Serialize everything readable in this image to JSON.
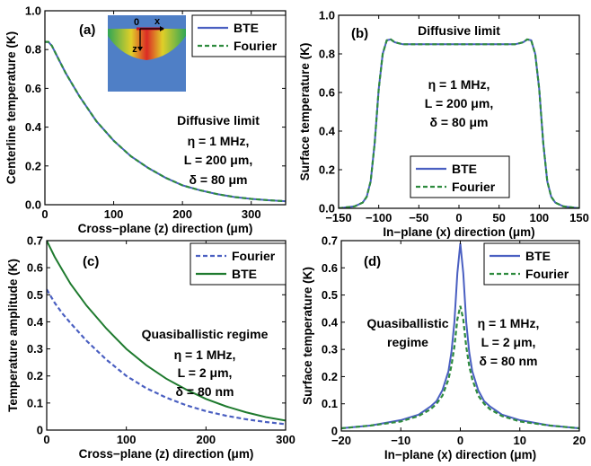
{
  "chart_data": [
    {
      "panel": "(a)",
      "type": "line",
      "xlabel": "Cross−plane (z) direction (μm)",
      "ylabel": "Centerline temperature (K)",
      "xlim": [
        0,
        350
      ],
      "ylim": [
        0,
        1.0
      ],
      "xticks": [
        0,
        100,
        200,
        300
      ],
      "yticks": [
        0,
        0.2,
        0.4,
        0.6,
        0.8,
        1.0
      ],
      "xtick_labels": [
        "0",
        "100",
        "200",
        "300"
      ],
      "ytick_labels": [
        "0.0",
        "0.2",
        "0.4",
        "0.6",
        "0.8",
        "1.0"
      ],
      "annotations": [
        "Diffusive limit",
        "η = 1 MHz,",
        "L = 200 μm,",
        "δ = 80 μm"
      ],
      "legend": "top-right",
      "inset_labels": [
        "0",
        "x",
        "z"
      ],
      "series": [
        {
          "name": "BTE",
          "color": "#4a5fc1",
          "dash": "solid",
          "x": [
            0,
            5,
            10,
            20,
            30,
            50,
            75,
            100,
            125,
            150,
            175,
            200,
            225,
            250,
            275,
            300,
            325,
            350
          ],
          "y": [
            0.84,
            0.84,
            0.82,
            0.75,
            0.68,
            0.56,
            0.43,
            0.33,
            0.25,
            0.19,
            0.14,
            0.1,
            0.075,
            0.055,
            0.04,
            0.03,
            0.023,
            0.018
          ]
        },
        {
          "name": "Fourier",
          "color": "#2e8b3e",
          "dash": "dashed",
          "x": [
            0,
            5,
            10,
            20,
            30,
            50,
            75,
            100,
            125,
            150,
            175,
            200,
            225,
            250,
            275,
            300,
            325,
            350
          ],
          "y": [
            0.84,
            0.84,
            0.82,
            0.75,
            0.68,
            0.56,
            0.43,
            0.33,
            0.25,
            0.19,
            0.14,
            0.1,
            0.075,
            0.055,
            0.04,
            0.03,
            0.023,
            0.018
          ]
        }
      ]
    },
    {
      "panel": "(b)",
      "type": "line",
      "xlabel": "In−plane (x) direction (μm)",
      "ylabel": "Surface temperature (K)",
      "xlim": [
        -150,
        150
      ],
      "ylim": [
        0,
        1.0
      ],
      "xticks": [
        -150,
        -100,
        -50,
        0,
        50,
        100,
        150
      ],
      "yticks": [
        0,
        0.2,
        0.4,
        0.6,
        0.8,
        1.0
      ],
      "xtick_labels": [
        "−150",
        "−100",
        "−50",
        "0",
        "50",
        "100",
        "150"
      ],
      "ytick_labels": [
        "0.0",
        "0.2",
        "0.4",
        "0.6",
        "0.8",
        "1.0"
      ],
      "annotations": [
        "Diffusive limit",
        "η = 1 MHz,",
        "L = 200 μm,",
        "δ = 80 μm"
      ],
      "legend": "bottom-center",
      "series": [
        {
          "name": "BTE",
          "color": "#4a5fc1",
          "dash": "solid",
          "x": [
            -150,
            -140,
            -130,
            -120,
            -115,
            -110,
            -105,
            -100,
            -95,
            -90,
            -85,
            -80,
            -70,
            -50,
            -25,
            0,
            25,
            50,
            70,
            80,
            85,
            90,
            95,
            100,
            105,
            110,
            115,
            120,
            130,
            140,
            150
          ],
          "y": [
            0.0,
            0.005,
            0.01,
            0.03,
            0.06,
            0.14,
            0.34,
            0.62,
            0.8,
            0.87,
            0.875,
            0.86,
            0.85,
            0.85,
            0.85,
            0.85,
            0.85,
            0.85,
            0.85,
            0.86,
            0.875,
            0.87,
            0.8,
            0.62,
            0.34,
            0.14,
            0.06,
            0.03,
            0.01,
            0.005,
            0.0
          ]
        },
        {
          "name": "Fourier",
          "color": "#2e8b3e",
          "dash": "dashed",
          "x": [
            -150,
            -140,
            -130,
            -120,
            -115,
            -110,
            -105,
            -100,
            -95,
            -90,
            -85,
            -80,
            -70,
            -50,
            -25,
            0,
            25,
            50,
            70,
            80,
            85,
            90,
            95,
            100,
            105,
            110,
            115,
            120,
            130,
            140,
            150
          ],
          "y": [
            0.0,
            0.005,
            0.01,
            0.03,
            0.06,
            0.14,
            0.34,
            0.62,
            0.8,
            0.87,
            0.875,
            0.86,
            0.85,
            0.85,
            0.85,
            0.85,
            0.85,
            0.85,
            0.85,
            0.86,
            0.875,
            0.87,
            0.8,
            0.62,
            0.34,
            0.14,
            0.06,
            0.03,
            0.01,
            0.005,
            0.0
          ]
        }
      ]
    },
    {
      "panel": "(c)",
      "type": "line",
      "xlabel": "Cross−plane (z) direction (μm)",
      "ylabel": "Temperature amplitude (K)",
      "xlim": [
        0,
        300
      ],
      "ylim": [
        0,
        0.7
      ],
      "xticks": [
        0,
        100,
        200,
        300
      ],
      "yticks": [
        0,
        0.1,
        0.2,
        0.3,
        0.4,
        0.5,
        0.6,
        0.7
      ],
      "xtick_labels": [
        "0",
        "100",
        "200",
        "300"
      ],
      "ytick_labels": [
        "0",
        "0.1",
        "0.2",
        "0.3",
        "0.4",
        "0.5",
        "0.6",
        "0.7"
      ],
      "annotations": [
        "Quasiballistic regime",
        "η = 1 MHz,",
        "L = 2 μm,",
        "δ = 80 nm"
      ],
      "legend": "top-right",
      "series": [
        {
          "name": "Fourier",
          "color": "#4a5fc1",
          "dash": "dashed",
          "x": [
            0,
            10,
            20,
            30,
            50,
            75,
            100,
            125,
            150,
            175,
            200,
            225,
            250,
            275,
            300
          ],
          "y": [
            0.52,
            0.47,
            0.43,
            0.395,
            0.33,
            0.26,
            0.2,
            0.155,
            0.12,
            0.092,
            0.07,
            0.053,
            0.04,
            0.03,
            0.022
          ]
        },
        {
          "name": "BTE",
          "color": "#1e7a2e",
          "dash": "solid",
          "x": [
            0,
            10,
            20,
            30,
            50,
            75,
            100,
            125,
            150,
            175,
            200,
            225,
            250,
            275,
            300
          ],
          "y": [
            0.7,
            0.64,
            0.59,
            0.54,
            0.46,
            0.375,
            0.3,
            0.24,
            0.19,
            0.15,
            0.115,
            0.088,
            0.066,
            0.048,
            0.035
          ]
        }
      ]
    },
    {
      "panel": "(d)",
      "type": "line",
      "xlabel": "In−plane (x) direction (μm)",
      "ylabel": "Surface temperature (K)",
      "xlim": [
        -20,
        20
      ],
      "ylim": [
        0,
        0.7
      ],
      "xticks": [
        -20,
        -10,
        0,
        10,
        20
      ],
      "yticks": [
        0,
        0.1,
        0.2,
        0.3,
        0.4,
        0.5,
        0.6,
        0.7
      ],
      "xtick_labels": [
        "−20",
        "−10",
        "0",
        "10",
        "20"
      ],
      "ytick_labels": [
        "0",
        "0.1",
        "0.2",
        "0.3",
        "0.4",
        "0.5",
        "0.6",
        "0.7"
      ],
      "annotations": [
        "Quasiballistic",
        "regime",
        "η = 1 MHz,",
        "L = 2 μm,",
        "δ = 80 nm"
      ],
      "legend": "top-right",
      "series": [
        {
          "name": "BTE",
          "color": "#4a5fc1",
          "dash": "solid",
          "x": [
            -20,
            -15,
            -10,
            -7,
            -5,
            -4,
            -3,
            -2,
            -1.5,
            -1,
            -0.5,
            0,
            0.5,
            1,
            1.5,
            2,
            3,
            4,
            5,
            7,
            10,
            15,
            20
          ],
          "y": [
            0.01,
            0.02,
            0.04,
            0.06,
            0.09,
            0.11,
            0.15,
            0.22,
            0.29,
            0.4,
            0.58,
            0.69,
            0.58,
            0.4,
            0.29,
            0.22,
            0.15,
            0.11,
            0.09,
            0.06,
            0.04,
            0.02,
            0.01
          ]
        },
        {
          "name": "Fourier",
          "color": "#2e8b3e",
          "dash": "dashed",
          "x": [
            -20,
            -15,
            -10,
            -7,
            -5,
            -4,
            -3,
            -2,
            -1.5,
            -1,
            -0.5,
            0,
            0.5,
            1,
            1.5,
            2,
            3,
            4,
            5,
            7,
            10,
            15,
            20
          ],
          "y": [
            0.01,
            0.02,
            0.035,
            0.055,
            0.08,
            0.1,
            0.13,
            0.19,
            0.24,
            0.31,
            0.41,
            0.46,
            0.41,
            0.31,
            0.24,
            0.19,
            0.13,
            0.1,
            0.08,
            0.055,
            0.035,
            0.02,
            0.01
          ]
        }
      ]
    }
  ]
}
